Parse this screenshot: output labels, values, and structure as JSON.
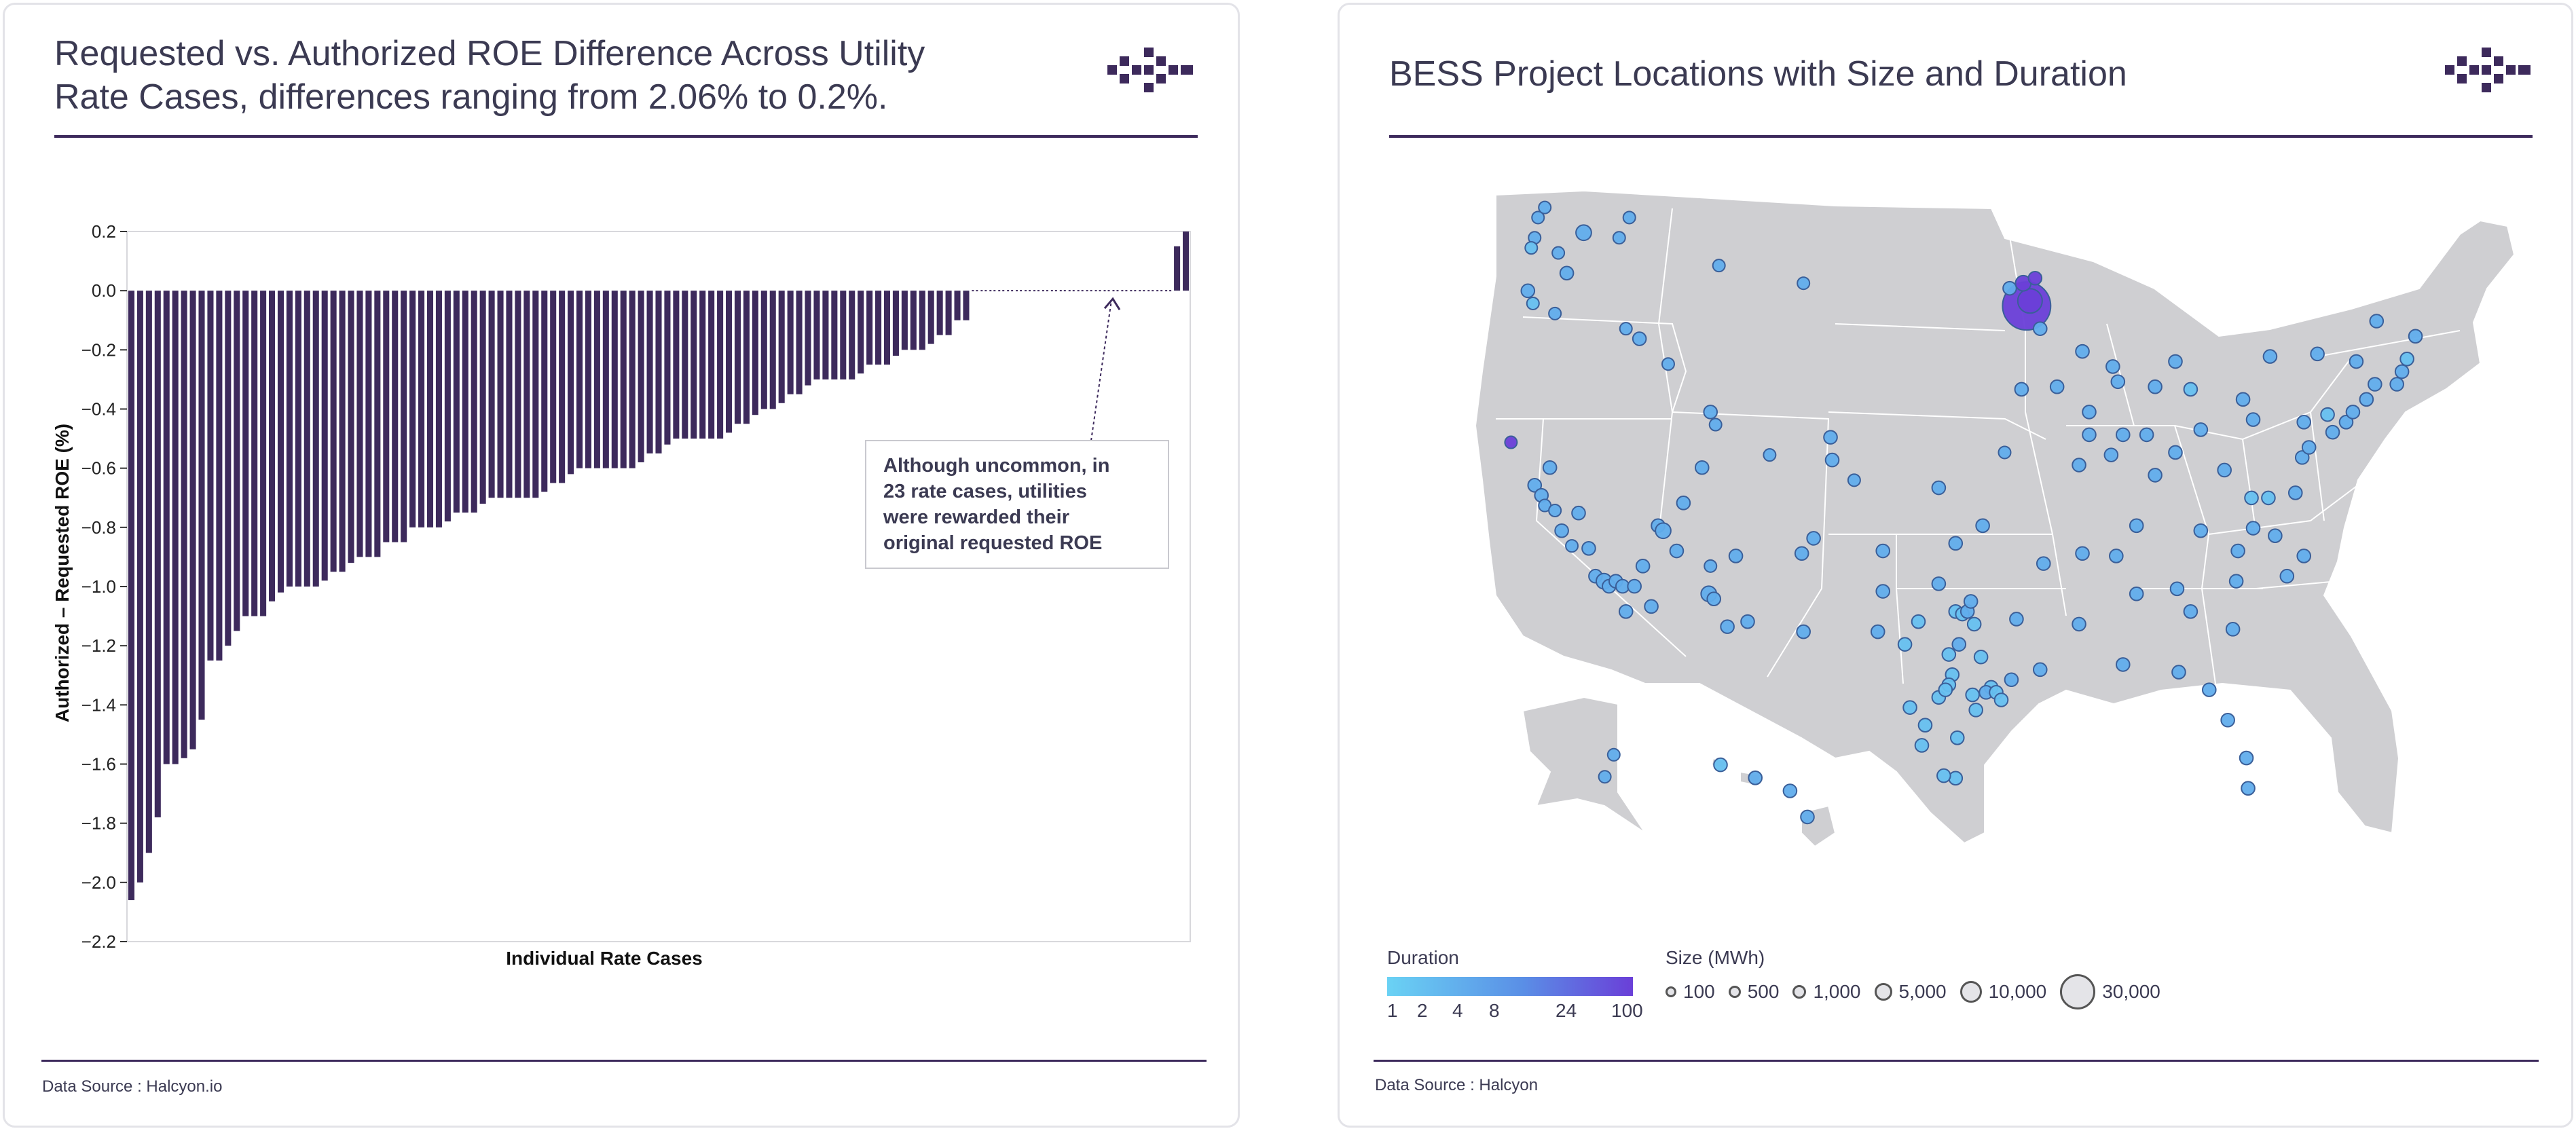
{
  "colors": {
    "bar": "#3d2a5c",
    "accent": "#3d2a5c",
    "map_land": "#cfcfd2",
    "map_border": "#ffffff",
    "text": "#3b3a52",
    "duration_low": "#6ad2f4",
    "duration_high": "#6a3fd8"
  },
  "left_card": {
    "title_line1": "Requested vs. Authorized ROE Difference Across Utility",
    "title_line2": "Rate Cases, differences ranging from 2.06% to 0.2%.",
    "source": "Data Source : Halcyon.io",
    "logo_icon": "halcyon-logo-icon"
  },
  "right_card": {
    "title": "BESS Project Locations with Size and Duration",
    "source": "Data Source : Halcyon",
    "logo_icon": "halcyon-logo-icon",
    "duration_legend": {
      "title": "Duration",
      "ticks": [
        "1",
        "2",
        "4",
        "8",
        "24",
        "100"
      ]
    },
    "size_legend": {
      "title": "Size (MWh)",
      "items": [
        "100",
        "500",
        "1,000",
        "5,000",
        "10,000",
        "30,000"
      ]
    }
  },
  "chart_data": [
    {
      "type": "bar",
      "title": "Requested vs. Authorized ROE Difference Across Utility Rate Cases, differences ranging from 2.06% to 0.2%.",
      "xlabel": "Individual Rate Cases",
      "ylabel": "Authorized – Requested ROE (%)",
      "ylim": [
        -2.2,
        0.2
      ],
      "yticks": [
        "0.2",
        "0.0",
        "−0.2",
        "−0.4",
        "−0.6",
        "−0.8",
        "−1.0",
        "−1.2",
        "−1.4",
        "−1.6",
        "−1.8",
        "−2.0",
        "−2.2"
      ],
      "ytick_values": [
        0.2,
        0.0,
        -0.2,
        -0.4,
        -0.6,
        -0.8,
        -1.0,
        -1.2,
        -1.4,
        -1.6,
        -1.8,
        -2.0,
        -2.2
      ],
      "values": [
        -2.06,
        -2.0,
        -1.9,
        -1.78,
        -1.6,
        -1.6,
        -1.58,
        -1.55,
        -1.45,
        -1.25,
        -1.25,
        -1.2,
        -1.15,
        -1.1,
        -1.1,
        -1.1,
        -1.05,
        -1.02,
        -1.0,
        -1.0,
        -1.0,
        -1.0,
        -0.98,
        -0.95,
        -0.95,
        -0.92,
        -0.9,
        -0.9,
        -0.9,
        -0.85,
        -0.85,
        -0.85,
        -0.8,
        -0.8,
        -0.8,
        -0.8,
        -0.78,
        -0.75,
        -0.75,
        -0.75,
        -0.72,
        -0.7,
        -0.7,
        -0.7,
        -0.7,
        -0.7,
        -0.7,
        -0.68,
        -0.65,
        -0.65,
        -0.62,
        -0.6,
        -0.6,
        -0.6,
        -0.6,
        -0.6,
        -0.6,
        -0.6,
        -0.58,
        -0.55,
        -0.55,
        -0.52,
        -0.5,
        -0.5,
        -0.5,
        -0.5,
        -0.5,
        -0.5,
        -0.48,
        -0.45,
        -0.45,
        -0.42,
        -0.4,
        -0.4,
        -0.38,
        -0.35,
        -0.35,
        -0.32,
        -0.3,
        -0.3,
        -0.3,
        -0.3,
        -0.3,
        -0.28,
        -0.25,
        -0.25,
        -0.25,
        -0.22,
        -0.2,
        -0.2,
        -0.2,
        -0.18,
        -0.15,
        -0.15,
        -0.1,
        -0.1,
        0.0,
        0.0,
        0.0,
        0.0,
        0.0,
        0.0,
        0.0,
        0.0,
        0.0,
        0.0,
        0.0,
        0.0,
        0.0,
        0.0,
        0.0,
        0.0,
        0.0,
        0.0,
        0.0,
        0.0,
        0.0,
        0.0,
        0.0,
        0.15,
        0.2
      ],
      "annotation": {
        "lines": [
          "Although uncommon, in",
          "23 rate cases, utilities",
          "were rewarded their",
          "original requested ROE"
        ]
      }
    },
    {
      "type": "scatter",
      "title": "BESS Project Locations with Size and Duration",
      "subtype": "bubble map of the contiguous United States, Alaska and Hawaii",
      "x_unit": "degrees longitude",
      "y_unit": "degrees latitude",
      "points": [
        [
          -122.4,
          47.6,
          100,
          4
        ],
        [
          -122.2,
          48.4,
          100,
          4
        ],
        [
          -121.8,
          48.8,
          100,
          4
        ],
        [
          -122.6,
          47.2,
          100,
          2
        ],
        [
          -121.0,
          47.0,
          100,
          4
        ],
        [
          -119.5,
          47.8,
          1000,
          4
        ],
        [
          -120.5,
          46.2,
          500,
          4
        ],
        [
          -117.4,
          47.6,
          100,
          4
        ],
        [
          -116.8,
          48.4,
          100,
          4
        ],
        [
          -122.8,
          45.5,
          500,
          4
        ],
        [
          -122.5,
          45.0,
          100,
          2
        ],
        [
          -121.2,
          44.6,
          100,
          4
        ],
        [
          -117.0,
          44.0,
          100,
          4
        ],
        [
          -116.2,
          43.6,
          500,
          4
        ],
        [
          -114.5,
          42.6,
          100,
          4
        ],
        [
          -111.5,
          46.5,
          100,
          4
        ],
        [
          -106.5,
          45.8,
          100,
          4
        ],
        [
          -123.8,
          39.5,
          100,
          100
        ],
        [
          -122.4,
          37.8,
          500,
          4
        ],
        [
          -122.0,
          37.4,
          500,
          4
        ],
        [
          -121.8,
          37.0,
          100,
          4
        ],
        [
          -121.5,
          38.5,
          500,
          4
        ],
        [
          -121.2,
          36.8,
          100,
          4
        ],
        [
          -120.8,
          36.0,
          500,
          4
        ],
        [
          -120.2,
          35.4,
          100,
          4
        ],
        [
          -119.8,
          36.7,
          500,
          4
        ],
        [
          -119.2,
          35.3,
          500,
          4
        ],
        [
          -118.8,
          34.2,
          500,
          4
        ],
        [
          -118.3,
          34.0,
          1000,
          4
        ],
        [
          -118.0,
          33.8,
          500,
          4
        ],
        [
          -117.6,
          34.0,
          500,
          4
        ],
        [
          -117.2,
          33.8,
          500,
          4
        ],
        [
          -117.0,
          32.8,
          500,
          4
        ],
        [
          -116.5,
          33.8,
          500,
          4
        ],
        [
          -116.0,
          34.6,
          500,
          4
        ],
        [
          -115.5,
          33.0,
          500,
          4
        ],
        [
          -115.1,
          36.2,
          500,
          4
        ],
        [
          -114.8,
          36.0,
          1000,
          4
        ],
        [
          -114.0,
          35.2,
          500,
          4
        ],
        [
          -112.1,
          33.5,
          1000,
          4
        ],
        [
          -111.8,
          33.3,
          500,
          4
        ],
        [
          -111.0,
          32.2,
          500,
          4
        ],
        [
          -112.0,
          34.6,
          100,
          4
        ],
        [
          -110.5,
          35.0,
          500,
          4
        ],
        [
          -109.8,
          32.4,
          500,
          4
        ],
        [
          -112.0,
          40.7,
          500,
          4
        ],
        [
          -111.7,
          40.2,
          100,
          4
        ],
        [
          -113.6,
          37.1,
          500,
          4
        ],
        [
          -112.5,
          38.5,
          500,
          4
        ],
        [
          -108.5,
          39.0,
          100,
          4
        ],
        [
          -106.6,
          35.1,
          500,
          4
        ],
        [
          -106.5,
          32.0,
          500,
          4
        ],
        [
          -105.9,
          35.7,
          500,
          4
        ],
        [
          -104.9,
          39.7,
          500,
          4
        ],
        [
          -104.8,
          38.8,
          500,
          4
        ],
        [
          -103.5,
          38.0,
          100,
          4
        ],
        [
          -101.8,
          35.2,
          500,
          4
        ],
        [
          -101.8,
          33.6,
          500,
          4
        ],
        [
          -102.1,
          32.0,
          500,
          4
        ],
        [
          -100.5,
          31.5,
          500,
          2
        ],
        [
          -99.7,
          32.4,
          500,
          2
        ],
        [
          -98.5,
          33.9,
          500,
          4
        ],
        [
          -97.5,
          32.8,
          500,
          2
        ],
        [
          -97.1,
          32.7,
          500,
          2
        ],
        [
          -96.8,
          32.8,
          500,
          4
        ],
        [
          -96.4,
          32.3,
          500,
          2
        ],
        [
          -97.7,
          30.3,
          500,
          2
        ],
        [
          -97.9,
          29.9,
          500,
          2
        ],
        [
          -98.5,
          29.4,
          500,
          2
        ],
        [
          -98.1,
          29.7,
          500,
          2
        ],
        [
          -97.3,
          31.5,
          500,
          4
        ],
        [
          -96.0,
          31.0,
          500,
          2
        ],
        [
          -95.4,
          29.8,
          500,
          2
        ],
        [
          -95.7,
          29.6,
          500,
          4
        ],
        [
          -95.1,
          29.6,
          500,
          2
        ],
        [
          -94.2,
          30.1,
          500,
          4
        ],
        [
          -94.8,
          29.3,
          500,
          2
        ],
        [
          -96.3,
          28.9,
          500,
          2
        ],
        [
          -97.4,
          27.8,
          500,
          2
        ],
        [
          -97.5,
          26.2,
          500,
          2
        ],
        [
          -98.2,
          26.3,
          500,
          2
        ],
        [
          -99.5,
          27.5,
          500,
          2
        ],
        [
          -100.2,
          29.0,
          500,
          2
        ],
        [
          -99.3,
          28.3,
          500,
          2
        ],
        [
          -96.6,
          33.2,
          500,
          4
        ],
        [
          -97.9,
          31.1,
          500,
          2
        ],
        [
          -96.5,
          29.5,
          500,
          2
        ],
        [
          -93.9,
          32.5,
          500,
          4
        ],
        [
          -92.5,
          30.5,
          500,
          4
        ],
        [
          -95.9,
          36.2,
          500,
          4
        ],
        [
          -97.5,
          35.5,
          500,
          4
        ],
        [
          -98.5,
          37.7,
          500,
          4
        ],
        [
          -94.6,
          39.1,
          100,
          4
        ],
        [
          -93.6,
          41.6,
          500,
          4
        ],
        [
          -91.5,
          41.7,
          500,
          4
        ],
        [
          -93.3,
          44.9,
          30000,
          100
        ],
        [
          -93.1,
          45.1,
          5000,
          100
        ],
        [
          -92.5,
          44.0,
          500,
          4
        ],
        [
          -94.3,
          45.6,
          500,
          4
        ],
        [
          -93.5,
          45.8,
          1000,
          100
        ],
        [
          -92.8,
          46.0,
          500,
          100
        ],
        [
          -90.0,
          43.1,
          500,
          4
        ],
        [
          -88.2,
          42.5,
          500,
          4
        ],
        [
          -87.9,
          41.9,
          500,
          4
        ],
        [
          -89.6,
          40.7,
          500,
          4
        ],
        [
          -89.6,
          39.8,
          500,
          4
        ],
        [
          -88.3,
          39.0,
          500,
          4
        ],
        [
          -90.2,
          38.6,
          500,
          4
        ],
        [
          -87.6,
          39.8,
          500,
          4
        ],
        [
          -86.2,
          39.8,
          500,
          4
        ],
        [
          -85.7,
          41.7,
          500,
          4
        ],
        [
          -84.5,
          42.7,
          500,
          4
        ],
        [
          -83.6,
          41.6,
          500,
          2
        ],
        [
          -83.0,
          40.0,
          500,
          4
        ],
        [
          -84.5,
          39.1,
          500,
          4
        ],
        [
          -85.7,
          38.2,
          500,
          4
        ],
        [
          -86.8,
          36.2,
          500,
          4
        ],
        [
          -88.0,
          35.0,
          500,
          4
        ],
        [
          -90.0,
          35.1,
          500,
          4
        ],
        [
          -92.3,
          34.7,
          500,
          4
        ],
        [
          -90.2,
          32.3,
          500,
          4
        ],
        [
          -86.8,
          33.5,
          500,
          4
        ],
        [
          -84.4,
          33.7,
          500,
          4
        ],
        [
          -83.6,
          32.8,
          500,
          4
        ],
        [
          -81.1,
          32.1,
          500,
          4
        ],
        [
          -80.9,
          34.0,
          500,
          4
        ],
        [
          -80.8,
          35.2,
          500,
          4
        ],
        [
          -79.9,
          36.1,
          500,
          4
        ],
        [
          -78.6,
          35.8,
          500,
          4
        ],
        [
          -77.9,
          34.2,
          500,
          4
        ],
        [
          -76.9,
          35.0,
          500,
          4
        ],
        [
          -77.4,
          37.5,
          500,
          4
        ],
        [
          -79.0,
          37.3,
          500,
          2
        ],
        [
          -77.0,
          38.9,
          500,
          4
        ],
        [
          -76.6,
          39.3,
          500,
          4
        ],
        [
          -75.2,
          39.9,
          500,
          4
        ],
        [
          -74.4,
          40.3,
          500,
          4
        ],
        [
          -74.0,
          40.7,
          500,
          4
        ],
        [
          -75.5,
          40.6,
          500,
          2
        ],
        [
          -76.9,
          40.3,
          500,
          4
        ],
        [
          -79.9,
          40.4,
          500,
          4
        ],
        [
          -80.5,
          41.2,
          500,
          4
        ],
        [
          -78.9,
          42.9,
          500,
          4
        ],
        [
          -76.1,
          43.0,
          500,
          4
        ],
        [
          -73.8,
          42.7,
          500,
          4
        ],
        [
          -73.2,
          41.2,
          500,
          4
        ],
        [
          -72.7,
          41.8,
          500,
          4
        ],
        [
          -71.4,
          41.8,
          500,
          4
        ],
        [
          -71.1,
          42.3,
          500,
          4
        ],
        [
          -70.8,
          42.8,
          500,
          2
        ],
        [
          -70.3,
          43.7,
          500,
          4
        ],
        [
          -72.6,
          44.3,
          500,
          4
        ],
        [
          -87.6,
          30.7,
          500,
          4
        ],
        [
          -84.3,
          30.4,
          500,
          4
        ],
        [
          -82.5,
          29.7,
          500,
          4
        ],
        [
          -81.4,
          28.5,
          500,
          4
        ],
        [
          -80.3,
          27.0,
          500,
          4
        ],
        [
          -80.2,
          25.8,
          500,
          4
        ],
        [
          -83.0,
          36.0,
          500,
          4
        ],
        [
          -81.6,
          38.4,
          500,
          4
        ],
        [
          -80.0,
          37.3,
          500,
          2
        ],
        [
          -149.9,
          61.2,
          100,
          4
        ],
        [
          -147.7,
          64.8,
          100,
          4
        ],
        [
          -157.9,
          21.4,
          500,
          4
        ],
        [
          -155.5,
          19.6,
          500,
          4
        ],
        [
          -156.3,
          20.8,
          500,
          4
        ],
        [
          -159.5,
          22.0,
          500,
          2
        ]
      ]
    }
  ]
}
